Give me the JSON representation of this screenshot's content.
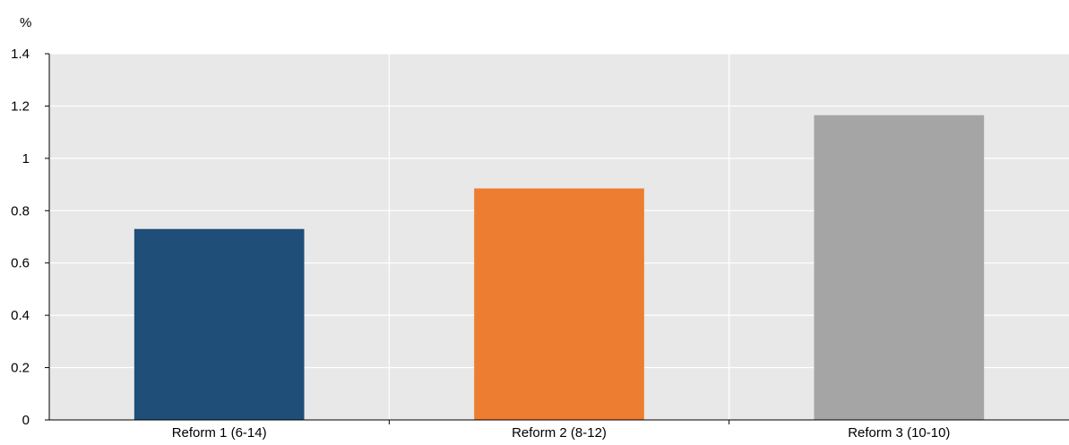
{
  "chart_data": {
    "type": "bar",
    "ylabel": "%",
    "ylim": [
      0,
      1.4
    ],
    "yticks": [
      0,
      0.2,
      0.4,
      0.6,
      0.8,
      1,
      1.2,
      1.4
    ],
    "yticklabels": [
      "0",
      "0.2",
      "0.4",
      "0.6",
      "0.8",
      "1",
      "1.2",
      "1.4"
    ],
    "categories": [
      "Reform 1 (6-14)",
      "Reform 2 (8-12)",
      "Reform 3 (10-10)"
    ],
    "values": [
      0.73,
      0.885,
      1.165
    ],
    "colors": [
      "#1f4e79",
      "#ed7d31",
      "#a5a5a5"
    ],
    "grid": true,
    "plot_background": "#e8e8e8"
  }
}
